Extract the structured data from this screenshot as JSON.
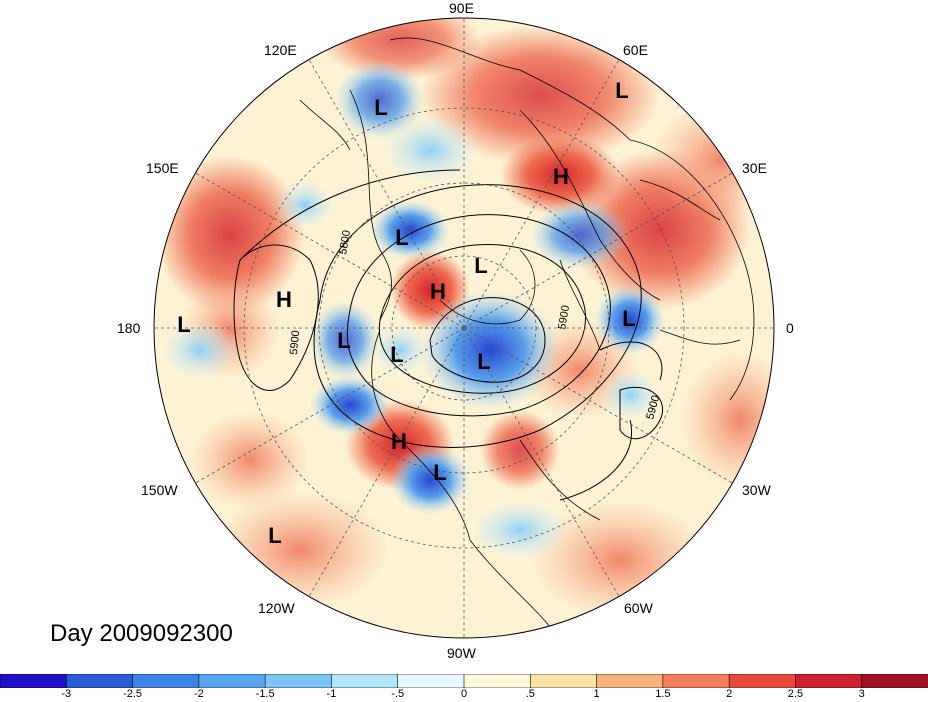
{
  "title": "Day 2009092300",
  "longitude_labels": {
    "90E": "90E",
    "60E": "60E",
    "30E": "30E",
    "0": "0",
    "30W": "30W",
    "60W": "60W",
    "90W": "90W",
    "120W": "120W",
    "150W": "150W",
    "180": "180",
    "150E": "150E",
    "120E": "120E"
  },
  "pressure_centers": [
    {
      "type": "L",
      "lon": "110E",
      "lat": 48
    },
    {
      "type": "L",
      "lon": "65E",
      "lat": 38
    },
    {
      "type": "H",
      "lon": "45E",
      "lat": 60
    },
    {
      "type": "L",
      "lon": "115E",
      "lat": 68
    },
    {
      "type": "L",
      "lon": "70E",
      "lat": 82
    },
    {
      "type": "H",
      "lon": "120E",
      "lat": 82
    },
    {
      "type": "H",
      "lon": "170E",
      "lat": 45
    },
    {
      "type": "L",
      "lon": "180",
      "lat": 20
    },
    {
      "type": "L",
      "lon": "165W",
      "lat": 68
    },
    {
      "type": "L",
      "lon": "145W",
      "lat": 78
    },
    {
      "type": "L",
      "lon": "70W",
      "lat": 82
    },
    {
      "type": "L",
      "lon": "5E",
      "lat": 57
    },
    {
      "type": "H",
      "lon": "120W",
      "lat": 60
    },
    {
      "type": "L",
      "lon": "100W",
      "lat": 55
    },
    {
      "type": "L",
      "lon": "140W",
      "lat": 15
    }
  ],
  "contour_labels": [
    "5800",
    "5900",
    "5900",
    "5900"
  ],
  "colorbar": {
    "ticks": [
      "-3",
      "-2.5",
      "-2",
      "-1.5",
      "-1",
      "-.5",
      "0",
      ".5",
      "1",
      "1.5",
      "2",
      "2.5",
      "3"
    ],
    "colors": [
      "#1f10c8",
      "#2a5ad8",
      "#3c84e6",
      "#5aa5ef",
      "#7cc6f7",
      "#b2e6fb",
      "#e8f7fc",
      "#fdf8d8",
      "#fbe3a6",
      "#f8b27b",
      "#f27e5a",
      "#e84a3c",
      "#cc2230",
      "#a01020"
    ]
  },
  "colors": {
    "low_anomaly": "#3c84e6",
    "high_anomaly": "#e84a3c",
    "neutral": "#fdf3d4"
  }
}
